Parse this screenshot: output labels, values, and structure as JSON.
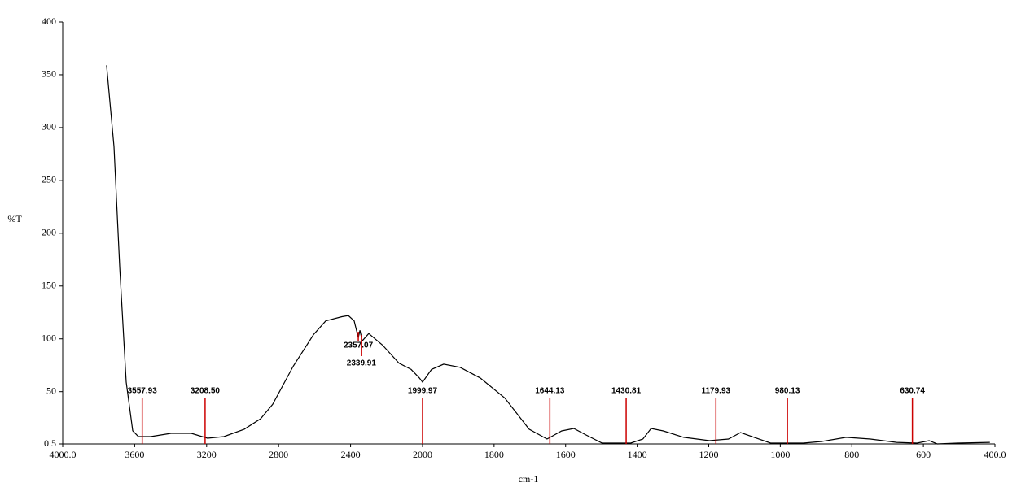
{
  "chart_data": {
    "type": "line",
    "ylabel": "%T",
    "xlabel": "cm-1",
    "xlim": [
      4000,
      400
    ],
    "x_scale_break": 2000,
    "xticks": [
      {
        "value": 4000,
        "label": "4000.0"
      },
      3600,
      3200,
      2800,
      2400,
      2000,
      1800,
      1600,
      1400,
      1200,
      1000,
      800,
      600,
      {
        "value": 400,
        "label": "400.0"
      }
    ],
    "ylim": [
      0.5,
      400
    ],
    "yticks": [
      0.5,
      50,
      100,
      150,
      200,
      250,
      300,
      350,
      400
    ],
    "series": [
      {
        "color": "#000000",
        "x": [
          3756,
          3715,
          3683,
          3647,
          3611,
          3579,
          3511,
          3398,
          3285,
          3195,
          3104,
          2991,
          2900,
          2833,
          2719,
          2606,
          2538,
          2448,
          2412,
          2380,
          2357,
          2348,
          2335,
          2299,
          2222,
          2131,
          2063,
          2018,
          2000,
          1975,
          1941,
          1895,
          1839,
          1770,
          1702,
          1652,
          1611,
          1577,
          1543,
          1498,
          1418,
          1384,
          1361,
          1327,
          1270,
          1198,
          1145,
          1111,
          1073,
          1027,
          936,
          884,
          816,
          748,
          675,
          618,
          584,
          561,
          505,
          414
        ],
        "values": [
          359,
          282,
          167,
          59,
          13,
          7.4,
          7.4,
          10.5,
          10.5,
          5.9,
          7.4,
          14.4,
          24.4,
          38,
          74,
          104,
          117,
          121,
          122,
          117,
          101,
          108,
          98,
          105,
          94,
          77,
          71,
          63,
          59,
          71,
          76,
          73,
          63,
          44,
          14.4,
          5.1,
          12.8,
          15.1,
          9,
          1.3,
          1.3,
          5.1,
          15.1,
          12.8,
          6.7,
          3.6,
          5.1,
          11.3,
          6.7,
          1.3,
          1.3,
          2.8,
          6.7,
          5.1,
          2,
          1.3,
          3.6,
          0.5,
          1.3,
          2
        ]
      }
    ],
    "peaks": {
      "color": "#cc0000",
      "values": [
        3557.93,
        3208.5,
        2357.07,
        2339.91,
        1999.97,
        1644.13,
        1430.81,
        1179.93,
        980.13,
        630.74
      ],
      "value_labels": [
        "3557.93",
        "3208.50",
        "2357.07",
        "2339.91",
        "1999.97",
        "1644.13",
        "1430.81",
        "1179.93",
        "980.13",
        "630.74"
      ]
    }
  }
}
